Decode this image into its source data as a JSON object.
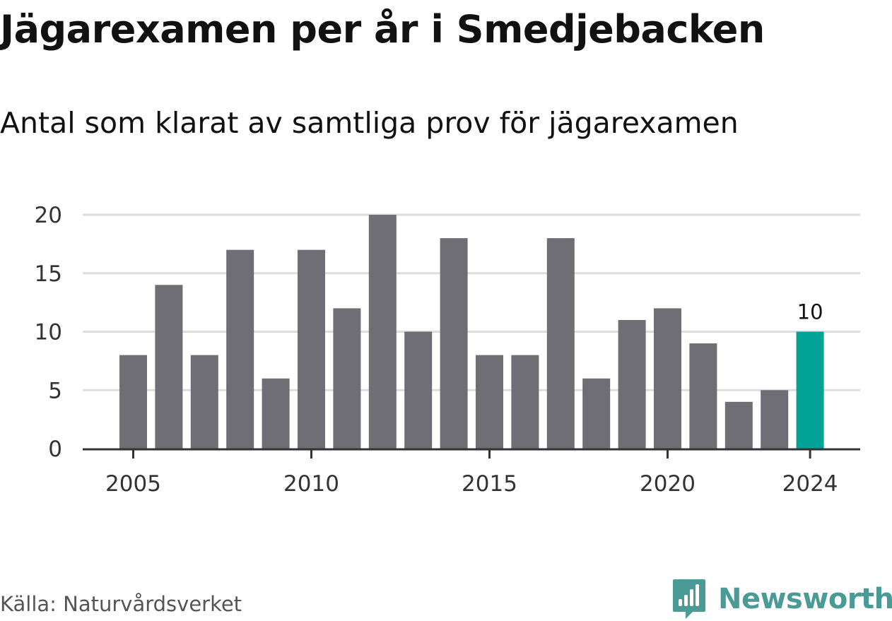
{
  "header": {
    "title": "Jägarexamen per år i Smedjebacken",
    "subtitle": "Antal som klarat av samtliga prov för jägarexamen"
  },
  "chart_data": {
    "type": "bar",
    "categories": [
      "2005",
      "2006",
      "2007",
      "2008",
      "2009",
      "2010",
      "2011",
      "2012",
      "2013",
      "2014",
      "2015",
      "2016",
      "2017",
      "2018",
      "2019",
      "2020",
      "2021",
      "2022",
      "2023",
      "2024"
    ],
    "values": [
      8,
      14,
      8,
      17,
      6,
      17,
      12,
      20,
      10,
      18,
      8,
      8,
      18,
      6,
      11,
      12,
      9,
      4,
      5,
      10
    ],
    "x_tick_labels": [
      "2005",
      "2010",
      "2015",
      "2020",
      "2024"
    ],
    "y_ticks": [
      0,
      5,
      10,
      15,
      20
    ],
    "ylim": [
      0,
      20
    ],
    "grid": true,
    "bar_color": "#6f6e74",
    "highlight": {
      "category": "2024",
      "color": "#00a396",
      "label": "10"
    },
    "axis_color": "#333333",
    "grid_color": "#dddddd"
  },
  "footer": {
    "source": "Källa: Naturvårdsverket",
    "brand": "Newsworthy",
    "brand_color": "#4a9a96",
    "brand_icon": "newsworthy-logo-icon"
  }
}
